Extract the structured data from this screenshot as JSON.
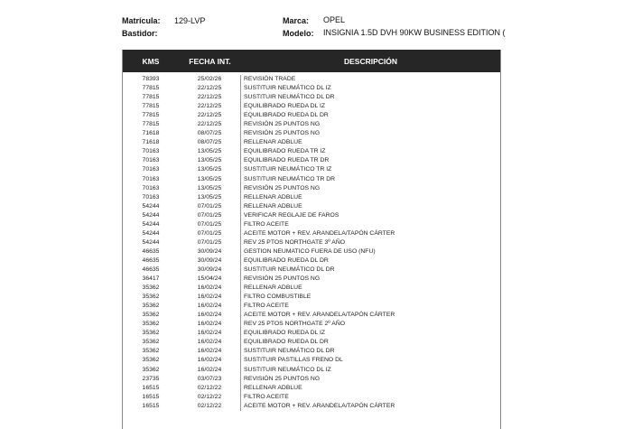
{
  "vehicle": {
    "matricula_label": "Matrícula:",
    "matricula": "129-LVP",
    "bastidor_label": "Bastidor:",
    "bastidor": "",
    "marca_label": "Marca:",
    "marca": "OPEL",
    "modelo_label": "Modelo:",
    "modelo": "INSIGNIA 1.5D DVH 90KW BUSINESS EDITION ("
  },
  "table": {
    "headers": [
      "KMS",
      "FECHA INT.",
      "DESCRIPCIÓN"
    ],
    "rows": [
      [
        "78393",
        "25/02/26",
        "REVISIÓN TRADE"
      ],
      [
        "77815",
        "22/12/25",
        "SUSTITUIR NEUMÁTICO DL IZ"
      ],
      [
        "77815",
        "22/12/25",
        "SUSTITUIR NEUMÁTICO DL DR"
      ],
      [
        "77815",
        "22/12/25",
        "EQUILIBRADO RUEDA DL IZ"
      ],
      [
        "77815",
        "22/12/25",
        "EQUILIBRADO RUEDA DL DR"
      ],
      [
        "77815",
        "22/12/25",
        "REVISIÓN 25 PUNTOS NG"
      ],
      [
        "71618",
        "08/07/25",
        "REVISIÓN 25 PUNTOS NG"
      ],
      [
        "71618",
        "08/07/25",
        "RELLENAR ADBLUE"
      ],
      [
        "70163",
        "13/05/25",
        "EQUILIBRADO RUEDA TR IZ"
      ],
      [
        "70163",
        "13/05/25",
        "EQUILIBRADO RUEDA TR DR"
      ],
      [
        "70163",
        "13/05/25",
        "SUSTITUIR NEUMÁTICO TR IZ"
      ],
      [
        "70163",
        "13/05/25",
        "SUSTITUIR NEUMÁTICO TR DR"
      ],
      [
        "70163",
        "13/05/25",
        "REVISIÓN 25 PUNTOS NG"
      ],
      [
        "70163",
        "13/05/25",
        "RELLENAR ADBLUE"
      ],
      [
        "54244",
        "07/01/25",
        "RELLENAR ADBLUE"
      ],
      [
        "54244",
        "07/01/25",
        "VERIFICAR REGLAJE DE FAROS"
      ],
      [
        "54244",
        "07/01/25",
        "FILTRO ACEITE"
      ],
      [
        "54244",
        "07/01/25",
        "ACEITE MOTOR + REV. ARANDELA/TAPÓN CÁRTER"
      ],
      [
        "54244",
        "07/01/25",
        "REV 25 PTOS NORTHGATE 3º AÑO"
      ],
      [
        "46635",
        "30/09/24",
        "GESTION NEUMATICO FUERA DE USO (NFU)"
      ],
      [
        "46635",
        "30/09/24",
        "EQUILIBRADO RUEDA DL DR"
      ],
      [
        "46635",
        "30/09/24",
        "SUSTITUIR NEUMÁTICO DL DR"
      ],
      [
        "36417",
        "15/04/24",
        "REVISIÓN 25 PUNTOS NG"
      ],
      [
        "35362",
        "16/02/24",
        "RELLENAR ADBLUE"
      ],
      [
        "35362",
        "16/02/24",
        "FILTRO COMBUSTIBLE"
      ],
      [
        "35362",
        "16/02/24",
        "FILTRO ACEITE"
      ],
      [
        "35362",
        "16/02/24",
        "ACEITE MOTOR + REV. ARANDELA/TAPÓN CÁRTER"
      ],
      [
        "35362",
        "16/02/24",
        "REV 25 PTOS NORTHGATE 2º AÑO"
      ],
      [
        "35362",
        "16/02/24",
        "EQUILIBRADO RUEDA DL IZ"
      ],
      [
        "35362",
        "16/02/24",
        "EQUILIBRADO RUEDA DL DR"
      ],
      [
        "35362",
        "16/02/24",
        "SUSTITUIR NEUMÁTICO DL DR"
      ],
      [
        "35362",
        "16/02/24",
        "SUSTITUIR PASTILLAS FRENO DL"
      ],
      [
        "35362",
        "16/02/24",
        "SUSTITUIR NEUMÁTICO DL IZ"
      ],
      [
        "23735",
        "03/07/23",
        "REVISIÓN 25 PUNTOS NG"
      ],
      [
        "16515",
        "02/12/22",
        "RELLENAR ADBLUE"
      ],
      [
        "16515",
        "02/12/22",
        "FILTRO ACEITE"
      ],
      [
        "16515",
        "02/12/22",
        "ACEITE MOTOR + REV. ARANDELA/TAPÓN CÁRTER"
      ]
    ]
  }
}
